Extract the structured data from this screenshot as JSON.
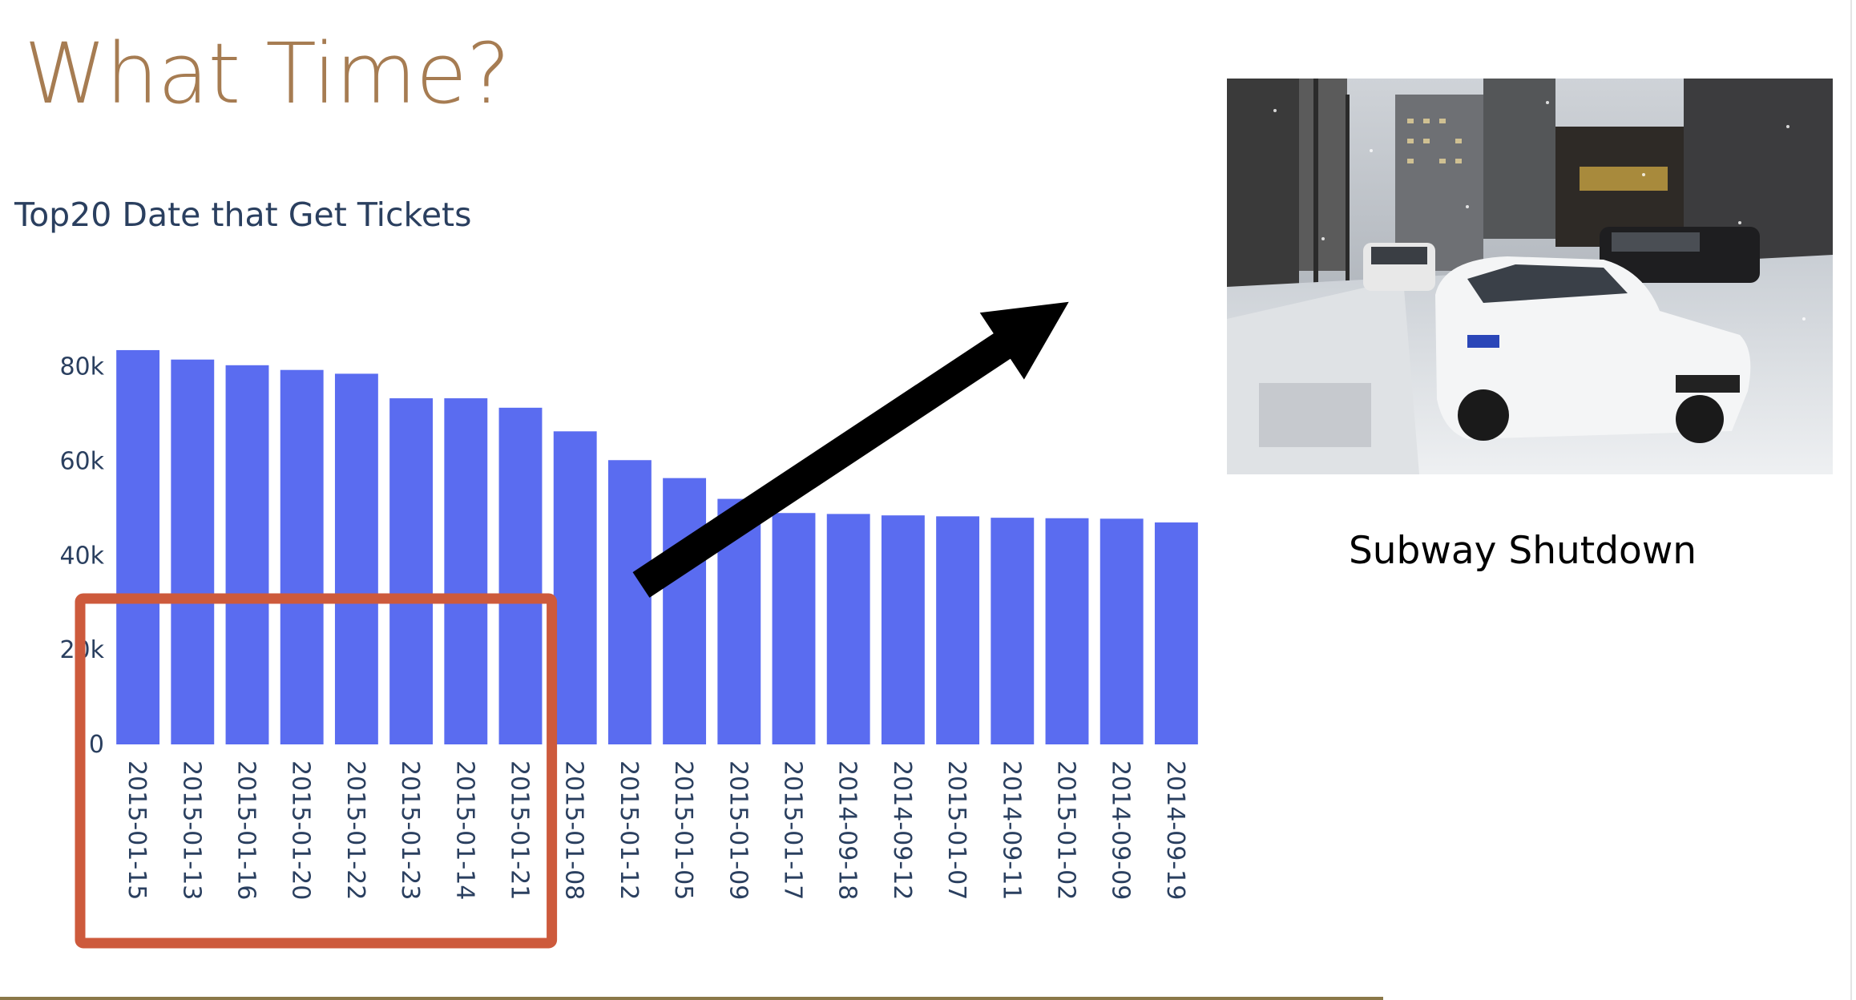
{
  "slide": {
    "title": "What Time?",
    "photo_caption": "Subway Shutdown"
  },
  "colors": {
    "title": "#a67c52",
    "bars": "#5a6cf0",
    "highlight_box": "#cd5a3c",
    "arrow": "#000000"
  },
  "icons": {
    "arrow": "arrow-icon",
    "photo": "snowy-street-police-car-photo"
  },
  "chart_data": {
    "type": "bar",
    "title": "Top20 Date that Get Tickets",
    "categories": [
      "2015-01-15",
      "2015-01-13",
      "2015-01-16",
      "2015-01-20",
      "2015-01-22",
      "2015-01-23",
      "2015-01-14",
      "2015-01-21",
      "2015-01-08",
      "2015-01-12",
      "2015-01-05",
      "2015-01-09",
      "2015-01-17",
      "2014-09-18",
      "2014-09-12",
      "2015-01-07",
      "2014-09-11",
      "2015-01-02",
      "2014-09-09",
      "2014-09-19"
    ],
    "values": [
      83500,
      81500,
      80300,
      79300,
      78500,
      73300,
      73300,
      71300,
      66300,
      60200,
      56400,
      52000,
      49000,
      48800,
      48500,
      48300,
      48000,
      47900,
      47800,
      47000
    ],
    "ylim": [
      0,
      84000
    ],
    "yticks": [
      0,
      20000,
      40000,
      60000,
      80000
    ],
    "ytick_labels": [
      "0",
      "20k",
      "40k",
      "60k",
      "80k"
    ],
    "xlabel": "",
    "ylabel": "",
    "grid": false,
    "highlighted_range": [
      "2015-01-15",
      "2015-01-21"
    ]
  }
}
